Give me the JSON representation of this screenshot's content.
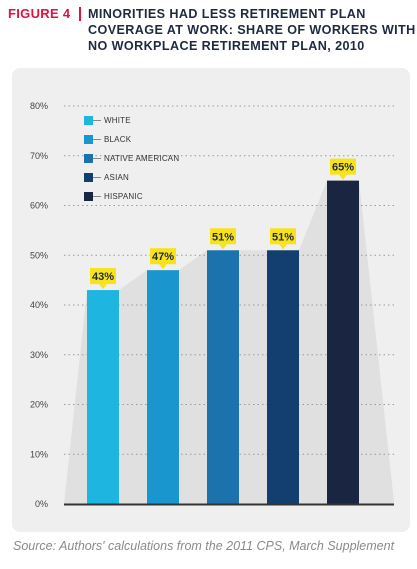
{
  "header": {
    "figure_label": "FIGURE 4",
    "title": "MINORITIES HAD LESS RETIREMENT PLAN COVERAGE AT WORK: SHARE OF WORKERS WITH NO WORKPLACE RETIREMENT PLAN, 2010"
  },
  "source": "Source: Authors' calculations from the 2011 CPS, March Supplement",
  "colors": {
    "figure_label": "#e2123f",
    "panel_background": "#efefef",
    "area_fill": "#e0e0e0",
    "value_label_background": "#f7e318"
  },
  "chart_data": {
    "type": "bar",
    "categories": [
      "WHITE",
      "BLACK",
      "NATIVE AMERICAN",
      "ASIAN",
      "HISPANIC"
    ],
    "values": [
      43,
      47,
      51,
      51,
      65
    ],
    "value_labels": [
      "43%",
      "47%",
      "51%",
      "51%",
      "65%"
    ],
    "colors": [
      "#1fb5e1",
      "#1a96cf",
      "#1b72ad",
      "#123f6d",
      "#1a2541"
    ],
    "ylim": [
      0,
      80
    ],
    "yticks": [
      "0%",
      "10%",
      "20%",
      "30%",
      "40%",
      "50%",
      "60%",
      "70%",
      "80%"
    ],
    "grid": "dotted horizontal",
    "legend_position": "top-left",
    "background_area": true
  }
}
